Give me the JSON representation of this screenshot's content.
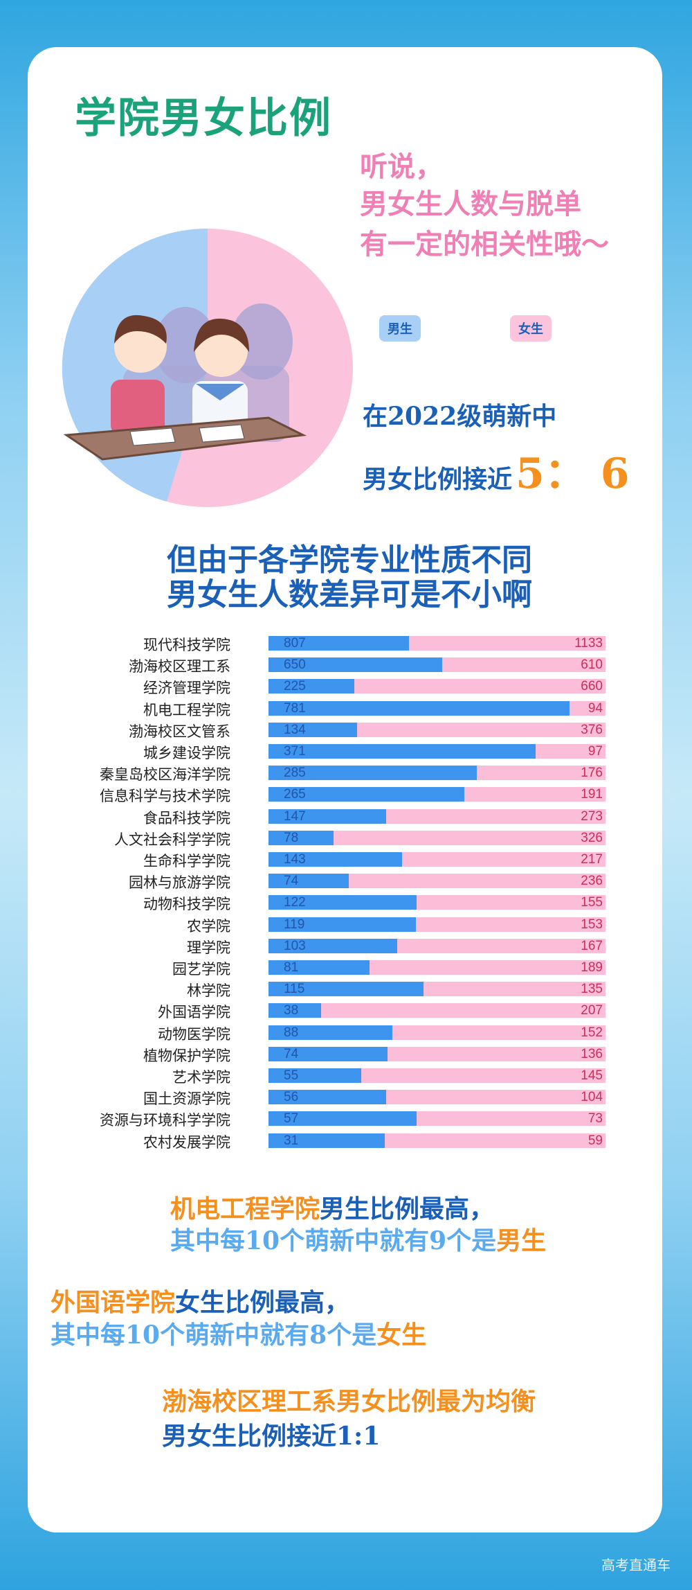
{
  "header": {
    "title": "学院男女比例"
  },
  "intro": {
    "lines": [
      "听说，",
      "男女生人数与脱单",
      "有一定的相关性哦～"
    ]
  },
  "legend": {
    "male": "男生",
    "female": "女生",
    "male_color": "#a8cff5",
    "female_color": "#fbc3dc"
  },
  "overall": {
    "line1": "在2022级萌新中",
    "line2_prefix": "男女比例接近",
    "ratio": "5： 6",
    "male_share": 5,
    "female_share": 6
  },
  "subtitle": {
    "lines": [
      "但由于各学院专业性质不同",
      "男女生人数差异可是不小啊"
    ]
  },
  "chart_data": {
    "type": "bar",
    "stacked": true,
    "orientation": "horizontal",
    "normalized": true,
    "categories": [
      "现代科技学院",
      "渤海校区理工系",
      "经济管理学院",
      "机电工程学院",
      "渤海校区文管系",
      "城乡建设学院",
      "秦皇岛校区海洋学院",
      "信息科学与技术学院",
      "食品科技学院",
      "人文社会科学学院",
      "生命科学学院",
      "园林与旅游学院",
      "动物科技学院",
      "农学院",
      "理学院",
      "园艺学院",
      "林学院",
      "外国语学院",
      "动物医学院",
      "植物保护学院",
      "艺术学院",
      "国土资源学院",
      "资源与环境科学学院",
      "农村发展学院"
    ],
    "series": [
      {
        "key": "male",
        "color": "#3d95f0",
        "values": [
          807,
          650,
          225,
          781,
          134,
          371,
          285,
          265,
          147,
          78,
          143,
          74,
          122,
          119,
          103,
          81,
          115,
          38,
          88,
          74,
          55,
          56,
          57,
          31
        ]
      },
      {
        "key": "female",
        "color": "#fbbdd8",
        "values": [
          1133,
          610,
          660,
          94,
          376,
          97,
          176,
          191,
          273,
          326,
          217,
          236,
          155,
          153,
          167,
          189,
          135,
          207,
          152,
          136,
          145,
          104,
          73,
          59
        ]
      }
    ]
  },
  "notes": {
    "n1": {
      "a": "机电工程学院",
      "b": "男生比例最高，",
      "c": "其中每10个萌新中就有9个是",
      "d": "男生"
    },
    "n2": {
      "a": "外国语学院",
      "b": "女生比例最高，",
      "c": "其中每10个萌新中就有8个是",
      "d": "女生"
    },
    "n3": {
      "a": "渤海校区理工系男女比例最为均衡",
      "b": "男女生比例接近1:1"
    }
  },
  "watermark": "高考直通车"
}
